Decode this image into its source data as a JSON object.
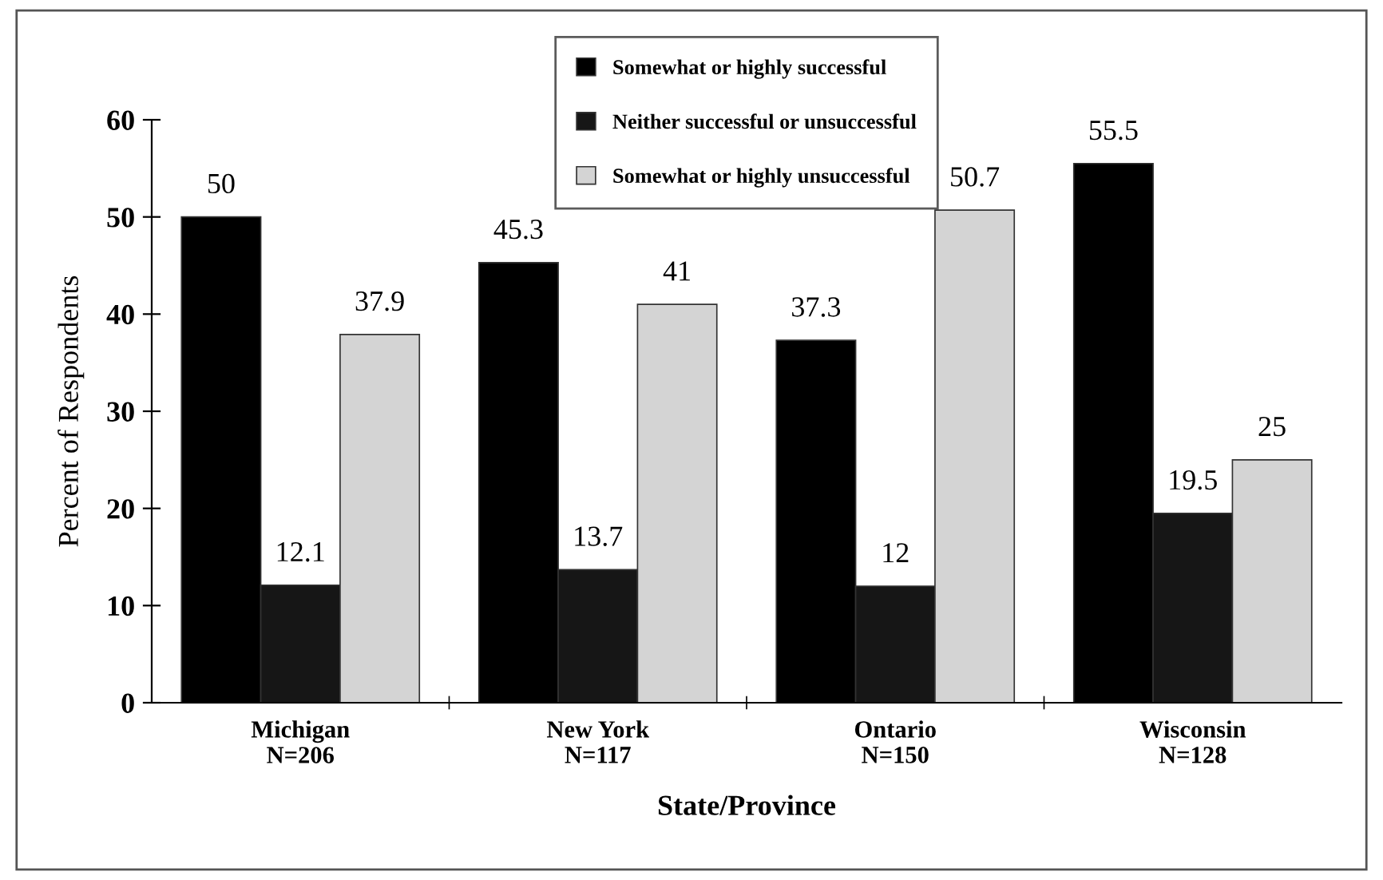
{
  "chart_data": {
    "type": "bar",
    "xlabel": "State/Province",
    "ylabel": "Percent of Respondents",
    "categories": [
      "Michigan\nN=206",
      "New York\nN=117",
      "Ontario\nN=150",
      "Wisconsin\nN=128"
    ],
    "series": [
      {
        "name": "Somewhat or highly successful",
        "color": "#000000",
        "values": [
          50,
          45.3,
          37.3,
          55.5
        ]
      },
      {
        "name": "Neither successful or unsuccessful",
        "color": "#161616",
        "values": [
          12.1,
          13.7,
          12,
          19.5
        ]
      },
      {
        "name": "Somewhat or highly unsuccessful",
        "color": "#d4d4d4",
        "values": [
          37.9,
          41,
          50.7,
          25
        ]
      }
    ],
    "ylim": [
      0,
      60
    ],
    "yticks": [
      0,
      10,
      20,
      30,
      40,
      50,
      60
    ],
    "data_labels": true,
    "legend": "top",
    "grid": false
  }
}
